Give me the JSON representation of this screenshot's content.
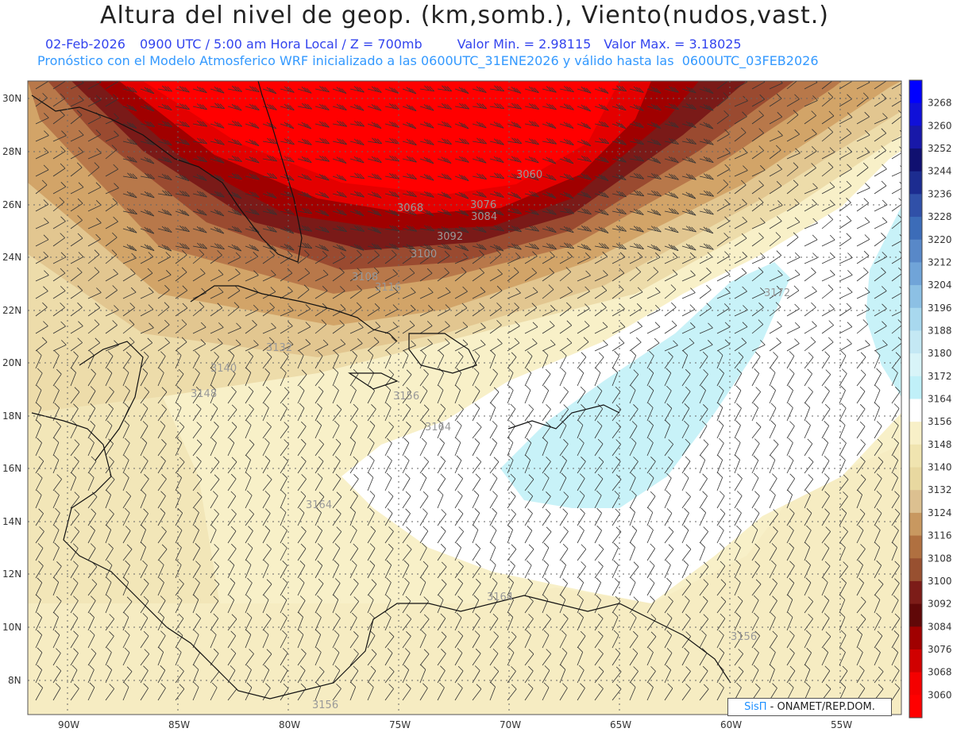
{
  "header": {
    "title": "Altura del nivel de geop. (km,somb.), Viento(nudos,vast.)",
    "date": "02-Feb-2026",
    "time": "0900 UTC / 5:00 am Hora Local / Z = 700mb",
    "min": "Valor Min. = 2.98115",
    "max": "Valor Max. = 3.18025",
    "forecast": "Pronóstico con el Modelo Atmosferico WRF inicializado a las 0600UTC_31ENE2026 y válido hasta las  0600UTC_03FEB2026"
  },
  "map": {
    "lat_labels": [
      "30N",
      "28N",
      "26N",
      "24N",
      "22N",
      "20N",
      "18N",
      "16N",
      "14N",
      "12N",
      "10N",
      "8N"
    ],
    "lon_labels": [
      "90W",
      "85W",
      "80W",
      "75W",
      "70W",
      "65W",
      "60W",
      "55W"
    ],
    "contour_labels": [
      "3060",
      "3068",
      "3076",
      "3084",
      "3092",
      "3100",
      "3108",
      "3116",
      "3132",
      "3140",
      "3148",
      "3156",
      "3164",
      "3172",
      "3156",
      "3164",
      "3164",
      "3156"
    ]
  },
  "legend": {
    "levels": [
      "3268",
      "3260",
      "3252",
      "3244",
      "3236",
      "3228",
      "3220",
      "3212",
      "3204",
      "3196",
      "3188",
      "3180",
      "3172",
      "3164",
      "3156",
      "3148",
      "3140",
      "3132",
      "3124",
      "3116",
      "3108",
      "3100",
      "3092",
      "3084",
      "3076",
      "3068",
      "3060"
    ],
    "colors": [
      "#0000ff",
      "#1010d8",
      "#1818a8",
      "#101070",
      "#1c2c90",
      "#3050a8",
      "#3c6cb8",
      "#5888c8",
      "#70a4d8",
      "#8cc0e4",
      "#a8d8ee",
      "#c4e8f4",
      "#d8f4f8",
      "#c0f0f8",
      "#ffffff",
      "#f8f0c8",
      "#f0e4b0",
      "#e8d8a0",
      "#dcc090",
      "#c89860",
      "#b07040",
      "#985030",
      "#7c1c18",
      "#600808",
      "#a00000",
      "#d00000",
      "#f40000",
      "#ff0000"
    ]
  },
  "credit": {
    "brand": "SisΠ",
    "text": " - ONAMET/REP.DOM."
  }
}
